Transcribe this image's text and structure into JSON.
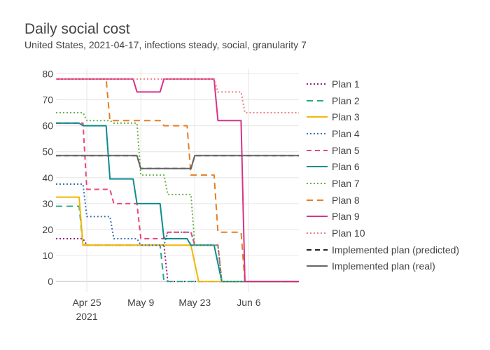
{
  "title": "Daily social cost",
  "subtitle": "United States, 2021-04-17, infections steady, social, granularity 7",
  "chart_data": {
    "type": "line",
    "title": "Daily social cost",
    "subtitle": "United States, 2021-04-17, infections steady, social, granularity 7",
    "xlabel": "",
    "ylabel": "",
    "x_range": [
      "2021-04-17",
      "2021-06-19"
    ],
    "ylim": [
      -4,
      82
    ],
    "x_ticks": [
      {
        "date": "2021-04-25",
        "label": "Apr 25",
        "sublabel": "2021"
      },
      {
        "date": "2021-05-09",
        "label": "May 9",
        "sublabel": ""
      },
      {
        "date": "2021-05-23",
        "label": "May 23",
        "sublabel": ""
      },
      {
        "date": "2021-06-06",
        "label": "Jun 6",
        "sublabel": ""
      }
    ],
    "y_ticks": [
      0,
      10,
      20,
      30,
      40,
      50,
      60,
      70,
      80
    ],
    "grid": true,
    "legend_position": "right",
    "series": [
      {
        "name": "Plan 1",
        "color": "#8e1a7a",
        "dash": "dot",
        "x": [
          "2021-04-17",
          "2021-04-24",
          "2021-04-25",
          "2021-05-01",
          "2021-05-02",
          "2021-05-08",
          "2021-05-09",
          "2021-05-15",
          "2021-05-16",
          "2021-06-19"
        ],
        "y": [
          16.5,
          16.5,
          14,
          14,
          14,
          14,
          14,
          14,
          0,
          0
        ]
      },
      {
        "name": "Plan 2",
        "color": "#2ba88a",
        "dash": "longdash",
        "x": [
          "2021-04-17",
          "2021-04-23",
          "2021-04-24",
          "2021-05-14",
          "2021-05-15",
          "2021-06-19"
        ],
        "y": [
          29,
          29,
          14,
          14,
          0,
          0
        ]
      },
      {
        "name": "Plan 3",
        "color": "#f2b705",
        "dash": "solid",
        "x": [
          "2021-04-17",
          "2021-04-23",
          "2021-04-24",
          "2021-05-22",
          "2021-05-24",
          "2021-06-19"
        ],
        "y": [
          32.5,
          32.5,
          14,
          14,
          0,
          0
        ]
      },
      {
        "name": "Plan 4",
        "color": "#3a6fb0",
        "dash": "dot",
        "x": [
          "2021-04-17",
          "2021-04-24",
          "2021-04-25",
          "2021-05-01",
          "2021-05-02",
          "2021-05-08",
          "2021-05-09",
          "2021-05-15",
          "2021-05-16",
          "2021-05-22",
          "2021-05-23",
          "2021-05-29",
          "2021-05-30",
          "2021-06-19"
        ],
        "y": [
          37.5,
          37.5,
          25,
          25,
          16.5,
          16.5,
          14,
          14,
          19,
          19,
          14,
          14,
          0,
          0
        ]
      },
      {
        "name": "Plan 5",
        "color": "#e8467c",
        "dash": "dash",
        "x": [
          "2021-04-17",
          "2021-04-24",
          "2021-04-25",
          "2021-05-01",
          "2021-05-02",
          "2021-05-08",
          "2021-05-09",
          "2021-05-15",
          "2021-05-16",
          "2021-05-22",
          "2021-05-23",
          "2021-05-29",
          "2021-05-30",
          "2021-06-19"
        ],
        "y": [
          61,
          61,
          35.5,
          35.5,
          30,
          30,
          16.5,
          16.5,
          19,
          19,
          14,
          14,
          0,
          0
        ]
      },
      {
        "name": "Plan 6",
        "color": "#0f8b8d",
        "dash": "solid",
        "x": [
          "2021-04-17",
          "2021-04-23",
          "2021-04-24",
          "2021-04-30",
          "2021-05-01",
          "2021-05-07",
          "2021-05-08",
          "2021-05-14",
          "2021-05-15",
          "2021-05-21",
          "2021-05-22",
          "2021-05-28",
          "2021-05-30",
          "2021-06-19"
        ],
        "y": [
          61,
          61,
          60,
          60,
          39.5,
          39.5,
          30,
          30,
          16.5,
          16.5,
          14,
          14,
          0,
          0
        ]
      },
      {
        "name": "Plan 7",
        "color": "#6ab04c",
        "dash": "dot",
        "x": [
          "2021-04-17",
          "2021-04-24",
          "2021-04-25",
          "2021-05-01",
          "2021-05-02",
          "2021-05-08",
          "2021-05-09",
          "2021-05-15",
          "2021-05-16",
          "2021-05-22",
          "2021-05-23",
          "2021-05-29",
          "2021-05-30",
          "2021-06-19"
        ],
        "y": [
          65,
          65,
          62,
          62,
          61,
          61,
          41,
          41,
          33.5,
          33.5,
          14,
          14,
          0,
          0
        ]
      },
      {
        "name": "Plan 8",
        "color": "#e67e22",
        "dash": "longdash",
        "x": [
          "2021-04-17",
          "2021-04-30",
          "2021-05-01",
          "2021-05-14",
          "2021-05-15",
          "2021-05-21",
          "2021-05-22",
          "2021-05-28",
          "2021-05-29",
          "2021-06-04",
          "2021-06-05",
          "2021-06-19"
        ],
        "y": [
          78,
          78,
          62,
          62,
          60,
          60,
          41,
          41,
          19,
          19,
          0,
          0
        ]
      },
      {
        "name": "Plan 9",
        "color": "#d6338a",
        "dash": "solid",
        "x": [
          "2021-04-17",
          "2021-05-07",
          "2021-05-08",
          "2021-05-14",
          "2021-05-15",
          "2021-05-28",
          "2021-05-29",
          "2021-06-04",
          "2021-06-05",
          "2021-06-19"
        ],
        "y": [
          78,
          78,
          73,
          73,
          78,
          78,
          62,
          62,
          0,
          0
        ]
      },
      {
        "name": "Plan 10",
        "color": "#f07f7f",
        "dash": "dot",
        "x": [
          "2021-04-17",
          "2021-05-28",
          "2021-05-29",
          "2021-06-04",
          "2021-06-05",
          "2021-06-19"
        ],
        "y": [
          78,
          78,
          73,
          73,
          65,
          65
        ]
      },
      {
        "name": "Implemented plan (predicted)",
        "color": "#222222",
        "dash": "dash",
        "x": [
          "2021-04-17",
          "2021-05-08",
          "2021-05-09",
          "2021-05-22",
          "2021-05-23",
          "2021-06-19"
        ],
        "y": [
          48.5,
          48.5,
          43.5,
          43.5,
          48.5,
          48.5
        ]
      },
      {
        "name": "Implemented plan (real)",
        "color": "#666666",
        "dash": "solid",
        "x": [
          "2021-04-17",
          "2021-05-08",
          "2021-05-09",
          "2021-05-22",
          "2021-05-23",
          "2021-06-19"
        ],
        "y": [
          48.5,
          48.5,
          43.5,
          43.5,
          48.5,
          48.5
        ]
      }
    ]
  }
}
